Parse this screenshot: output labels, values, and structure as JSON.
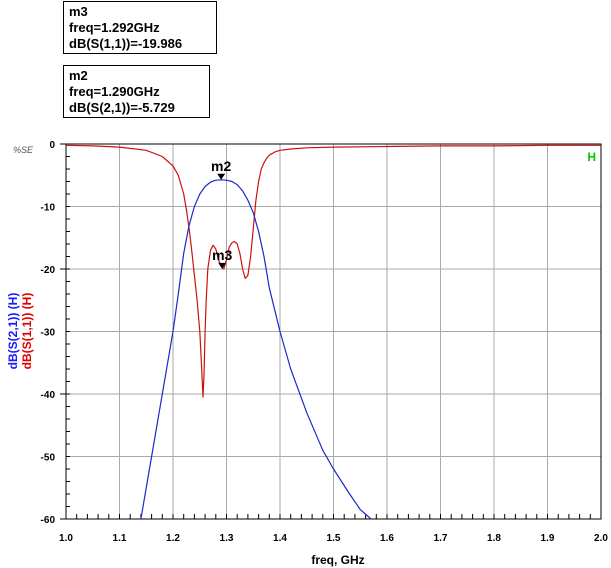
{
  "markers_panel": [
    {
      "name": "m3",
      "freq": "freq=1.292GHz",
      "reading": "dB(S(1,1))=-19.986"
    },
    {
      "name": "m2",
      "freq": "freq=1.290GHz",
      "reading": "dB(S(2,1))=-5.729"
    }
  ],
  "chart_data": {
    "type": "line",
    "xlabel": "freq, GHz",
    "ylabel_parts": [
      {
        "text": "dB(S(2,1)) (H)",
        "color": "#1a1aff"
      },
      {
        "text": "dB(S(1,1)) (H)",
        "color": "#e00000"
      }
    ],
    "xlim": [
      1.0,
      2.0
    ],
    "ylim": [
      -60,
      0
    ],
    "x_ticks": [
      "1.0",
      "1.1",
      "1.2",
      "1.3",
      "1.4",
      "1.5",
      "1.6",
      "1.7",
      "1.8",
      "1.9",
      "2.0"
    ],
    "y_ticks": [
      "0",
      "-20",
      "-40",
      "-60"
    ],
    "y_minor_labels": [
      "-10",
      "-30",
      "-50"
    ],
    "corner_label": "%SE",
    "legend_tag": {
      "text": "H",
      "color": "#00cc00"
    },
    "grid": true,
    "series": [
      {
        "name": "dB(S(1,1)) (H)",
        "color": "#cc1111",
        "x": [
          1.0,
          1.05,
          1.1,
          1.15,
          1.18,
          1.2,
          1.21,
          1.22,
          1.225,
          1.23,
          1.235,
          1.24,
          1.245,
          1.25,
          1.253,
          1.256,
          1.258,
          1.26,
          1.262,
          1.265,
          1.27,
          1.275,
          1.28,
          1.285,
          1.29,
          1.295,
          1.3,
          1.305,
          1.31,
          1.315,
          1.32,
          1.325,
          1.33,
          1.335,
          1.34,
          1.345,
          1.35,
          1.355,
          1.36,
          1.365,
          1.37,
          1.375,
          1.38,
          1.39,
          1.4,
          1.42,
          1.45,
          1.5,
          1.6,
          1.7,
          1.8,
          1.9,
          2.0
        ],
        "y": [
          -0.2,
          -0.3,
          -0.5,
          -1.0,
          -2.0,
          -3.5,
          -5.0,
          -8.0,
          -10.5,
          -13.5,
          -17.0,
          -21.0,
          -25.0,
          -30.0,
          -35.0,
          -40.5,
          -37.0,
          -30.0,
          -25.0,
          -20.0,
          -17.0,
          -16.2,
          -16.8,
          -18.5,
          -19.6,
          -20.0,
          -18.5,
          -16.5,
          -15.8,
          -15.6,
          -16.0,
          -17.5,
          -20.0,
          -21.5,
          -21.0,
          -18.0,
          -13.5,
          -9.0,
          -6.0,
          -4.0,
          -3.0,
          -2.3,
          -1.8,
          -1.3,
          -1.0,
          -0.8,
          -0.6,
          -0.5,
          -0.4,
          -0.3,
          -0.3,
          -0.2,
          -0.2
        ]
      },
      {
        "name": "dB(S(2,1)) (H)",
        "color": "#1a2acc",
        "x": [
          1.14,
          1.16,
          1.18,
          1.2,
          1.21,
          1.22,
          1.23,
          1.24,
          1.25,
          1.26,
          1.27,
          1.28,
          1.29,
          1.3,
          1.31,
          1.32,
          1.33,
          1.34,
          1.35,
          1.36,
          1.37,
          1.38,
          1.4,
          1.42,
          1.45,
          1.48,
          1.5,
          1.53,
          1.55,
          1.57
        ],
        "y": [
          -60,
          -50,
          -40,
          -30,
          -24,
          -17.5,
          -13,
          -10,
          -8,
          -6.8,
          -6.1,
          -5.8,
          -5.73,
          -5.8,
          -6.0,
          -6.5,
          -7.5,
          -9,
          -11,
          -14,
          -18,
          -23,
          -30,
          -36,
          -43,
          -49,
          -52,
          -56,
          -58.5,
          -60
        ]
      }
    ],
    "markers": [
      {
        "name": "m2",
        "x": 1.29,
        "y": -5.729
      },
      {
        "name": "m3",
        "x": 1.292,
        "y": -19.986
      }
    ]
  }
}
